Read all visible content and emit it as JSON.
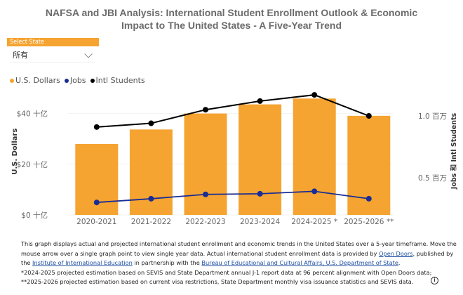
{
  "header": {
    "title_line1": "NAFSA and JBI Analysis: International Student Enrollment Outlook & Economic",
    "title_line2": "Impact to The United States - A Five-Year Trend"
  },
  "slicer": {
    "label": "Select State",
    "selected": "所有"
  },
  "colors": {
    "dollars": "#f5a431",
    "jobs": "#1a2d94",
    "students": "#000000",
    "axis_text": "#666666"
  },
  "chart_data": {
    "type": "bar",
    "title": "",
    "categories": [
      "2020-2021",
      "2021-2022",
      "2022-2023",
      "2023-2024",
      "2024-2025 *",
      "2025-2026 **"
    ],
    "legend": [
      "U.S. Dollars",
      "Jobs",
      "Intl Students"
    ],
    "legend_position": "top-left",
    "ylabel": "U.S. Dollars",
    "y2label": "Jobs 和 Intl Students",
    "y_ticks": [
      "$0 十亿",
      "$20 十亿",
      "$40 十亿"
    ],
    "y_tick_values": [
      0,
      20,
      40
    ],
    "y2_ticks": [
      "0.5 百万",
      "1.0 百万"
    ],
    "y2_tick_values": [
      0.5,
      1.0
    ],
    "ylim": [
      0,
      50
    ],
    "y2lim": [
      0.2,
      1.25
    ],
    "series": [
      {
        "name": "U.S. Dollars",
        "type": "bar",
        "axis": "left",
        "unit": "billion USD",
        "values": [
          28.0,
          33.7,
          40.0,
          43.6,
          45.9,
          39.1
        ]
      },
      {
        "name": "Jobs",
        "type": "line",
        "axis": "right",
        "unit": "million",
        "values": [
          0.3,
          0.33,
          0.365,
          0.37,
          0.39,
          0.33
        ]
      },
      {
        "name": "Intl Students",
        "type": "line",
        "axis": "right",
        "unit": "million",
        "values": [
          0.91,
          0.94,
          1.05,
          1.12,
          1.17,
          1.0
        ]
      }
    ],
    "grid": true
  },
  "footer": {
    "p1": "This graph displays actual and projected international student enrollment and economic trends in the United States over a 5-year timeframe. Move the mouse arrow over a single graph point to view single year data. Actual international student enrollment data is provided by ",
    "link_open_doors": "Open Doors",
    "p2": ", published by the ",
    "link_iie": "Institute of International Education",
    "p3": " in partnership with the ",
    "link_eca": "Bureau of Educational and Cultural Affairs, U.S. Department of State",
    "p4": ".",
    "note1": "*2024-2025 projected estimation based on SEVIS and State Department annual J-1 report data at 96 percent alignment with Open Doors data;",
    "note2": "**2025-2026 projected estimation based on current visa restrictions, State Department monthly visa issuance statistics and SEVIS data.",
    "info_icon": "info-icon"
  }
}
